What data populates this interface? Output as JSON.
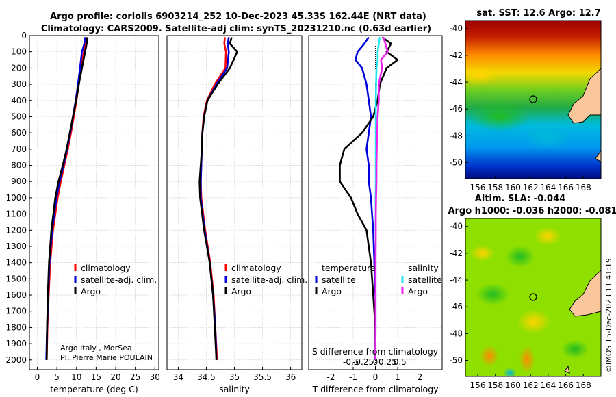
{
  "titles": {
    "line1": "Argo profile: coriolis 6903214_252 10-Dec-2023 45.33S 162.44E (NRT data)",
    "line2": "Climatology: CARS2009. Satellite-adj clim: synTS_20231210.nc (0.63d earlier)"
  },
  "colors": {
    "climatology": "#ff0000",
    "satellite_adj": "#0000dd",
    "argo": "#000000",
    "sal_satellite": "#22e5f0",
    "sal_argo": "#ee22ee",
    "land": "#f9c79b"
  },
  "credits": {
    "line1": "Argo Italy , MorSea",
    "line2": "PI: Pierre Marie POULAIN",
    "imos": "©IMOS 15-Dec-2023 11:41:19"
  },
  "chart_data": [
    {
      "type": "line",
      "panel": "temperature",
      "xlabel": "temperature (deg C)",
      "xlim": [
        -2,
        31
      ],
      "xticks": [
        0,
        5,
        10,
        15,
        20,
        25,
        30
      ],
      "ylim": [
        2060,
        0
      ],
      "yticks": [
        0,
        100,
        200,
        300,
        400,
        500,
        600,
        700,
        800,
        900,
        1000,
        1100,
        1200,
        1300,
        1400,
        1500,
        1600,
        1700,
        1800,
        1900,
        2000
      ],
      "grid": true,
      "legend": [
        "climatology",
        "satellite-adj. clim.",
        "Argo"
      ],
      "depth": [
        10,
        50,
        100,
        200,
        300,
        400,
        500,
        600,
        700,
        800,
        900,
        1000,
        1200,
        1400,
        1600,
        1800,
        2000
      ],
      "series": [
        {
          "name": "climatology",
          "values": [
            12.5,
            12.3,
            11.9,
            11.2,
            10.6,
            10.0,
            9.3,
            8.6,
            7.8,
            6.9,
            6.0,
            5.2,
            4.0,
            3.3,
            2.9,
            2.6,
            2.4
          ]
        },
        {
          "name": "satellite-adj. clim.",
          "values": [
            12.2,
            12.0,
            11.4,
            10.9,
            10.4,
            9.8,
            9.1,
            8.4,
            7.6,
            6.7,
            5.7,
            4.9,
            3.8,
            3.1,
            2.8,
            2.5,
            2.3
          ]
        },
        {
          "name": "Argo",
          "values": [
            12.8,
            12.6,
            12.2,
            11.4,
            10.6,
            9.9,
            9.1,
            8.3,
            7.5,
            6.5,
            5.4,
            4.6,
            3.6,
            3.0,
            2.7,
            2.5,
            2.4
          ]
        }
      ]
    },
    {
      "type": "line",
      "panel": "salinity",
      "xlabel": "salinity",
      "xlim": [
        33.8,
        36.2
      ],
      "xticks": [
        34,
        34.5,
        35,
        35.5,
        36
      ],
      "ylim": [
        2060,
        0
      ],
      "grid": true,
      "legend": [
        "climatology",
        "satellite-adj. clim.",
        "Argo"
      ],
      "depth": [
        10,
        50,
        100,
        200,
        300,
        400,
        500,
        600,
        700,
        800,
        900,
        1000,
        1200,
        1400,
        1600,
        1800,
        2000
      ],
      "series": [
        {
          "name": "climatology",
          "values": [
            34.83,
            34.82,
            34.85,
            34.84,
            34.65,
            34.51,
            34.45,
            34.43,
            34.42,
            34.41,
            34.4,
            34.41,
            34.48,
            34.57,
            34.63,
            34.66,
            34.69
          ]
        },
        {
          "name": "satellite-adj. clim.",
          "values": [
            34.9,
            34.88,
            34.9,
            34.87,
            34.68,
            34.52,
            34.46,
            34.43,
            34.42,
            34.41,
            34.4,
            34.4,
            34.47,
            34.56,
            34.62,
            34.66,
            34.68
          ]
        },
        {
          "name": "Argo",
          "values": [
            34.95,
            34.92,
            35.05,
            34.92,
            34.7,
            34.52,
            34.46,
            34.43,
            34.42,
            34.4,
            34.38,
            34.39,
            34.46,
            34.56,
            34.62,
            34.65,
            34.68
          ]
        }
      ]
    },
    {
      "type": "line",
      "panel": "differences",
      "xlabel": "T difference from climatology",
      "xlabel_top": "S difference from climatology",
      "xlim": [
        -3,
        3
      ],
      "xticks": [
        -2,
        -1,
        0,
        1,
        2
      ],
      "sticks": [
        "-0.5",
        "-0.25",
        "0",
        "0.25",
        "0.5"
      ],
      "ylim": [
        2060,
        0
      ],
      "grid": true,
      "legend_headers": [
        "temperature",
        "salinity"
      ],
      "legend": [
        "satellite",
        "Argo",
        "satellite",
        "Argo"
      ],
      "depth": [
        10,
        50,
        100,
        150,
        200,
        300,
        400,
        500,
        600,
        700,
        800,
        900,
        1000,
        1100,
        1200,
        1400,
        1600,
        1800,
        2000
      ],
      "series": [
        {
          "name": "temperature satellite",
          "values": [
            -0.3,
            -0.5,
            -0.8,
            -0.9,
            -0.6,
            -0.4,
            -0.3,
            -0.2,
            -0.3,
            -0.4,
            -0.3,
            -0.3,
            -0.2,
            -0.15,
            -0.1,
            -0.05,
            0,
            0,
            0
          ]
        },
        {
          "name": "temperature Argo",
          "values": [
            0.3,
            0.7,
            0.5,
            1.0,
            0.5,
            0.2,
            0.1,
            -0.1,
            -0.6,
            -1.4,
            -1.6,
            -1.6,
            -1.1,
            -0.8,
            -0.4,
            -0.2,
            -0.1,
            0,
            0
          ]
        },
        {
          "name": "salinity satellite",
          "values": [
            0.2,
            0.15,
            0.1,
            0.1,
            0.05,
            0.03,
            0.02,
            0.02,
            0.02,
            0.02,
            0.02,
            0.02,
            0.01,
            0.01,
            0.01,
            0.01,
            0.01,
            0.01,
            0
          ]
        },
        {
          "name": "salinity Argo",
          "values": [
            0.35,
            0.45,
            0.55,
            0.25,
            0.3,
            0.15,
            0.15,
            0.1,
            0.08,
            0.06,
            0.05,
            0.05,
            0.03,
            0.02,
            0.02,
            0.01,
            0.01,
            0.01,
            0
          ]
        }
      ]
    },
    {
      "type": "heatmap",
      "panel": "sst_map",
      "title": "sat. SST: 12.6 Argo: 12.7",
      "xticks": [
        156,
        158,
        160,
        162,
        164,
        166,
        168
      ],
      "yticks": [
        -40,
        -42,
        -44,
        -46,
        -48,
        -50
      ],
      "marker": [
        162.44,
        -45.33
      ]
    },
    {
      "type": "heatmap",
      "panel": "sla_map",
      "title_line1": "Altim. SLA: -0.044",
      "title_line2": "Argo h1000: -0.036 h2000: -0.081",
      "xticks": [
        156,
        158,
        160,
        162,
        164,
        166,
        168
      ],
      "yticks": [
        -40,
        -42,
        -44,
        -46,
        -48,
        -50
      ],
      "marker": [
        162.44,
        -45.33
      ]
    }
  ]
}
